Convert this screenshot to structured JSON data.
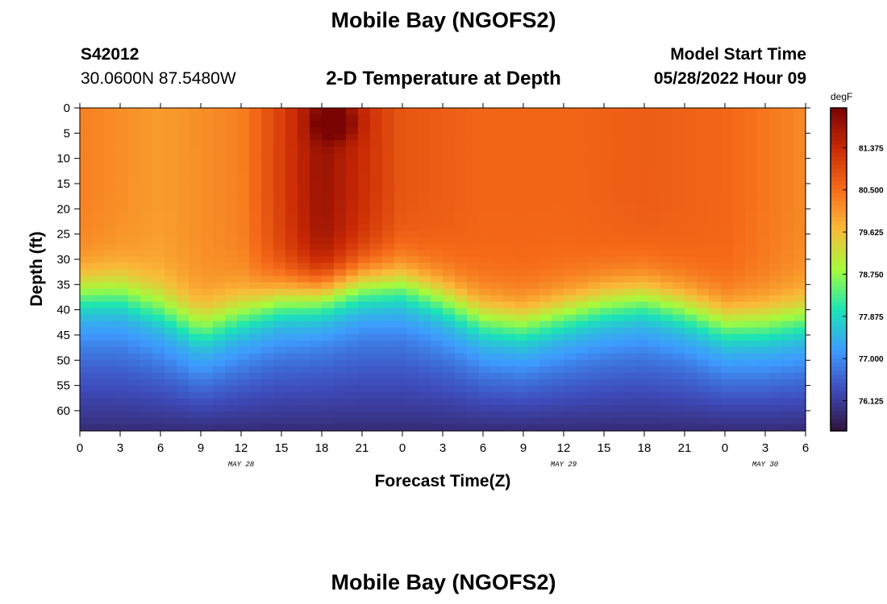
{
  "header": {
    "title": "Mobile Bay (NGOFS2)",
    "station_id": "S42012",
    "station_coords": "30.0600N  87.5480W",
    "subtitle": "2-D Temperature at Depth",
    "model_start_label": "Model Start Time",
    "model_start_value": "05/28/2022 Hour 09"
  },
  "footer": {
    "next_title": "Mobile Bay (NGOFS2)"
  },
  "colors": {
    "palette": [
      "#30123b",
      "#3e4ab9",
      "#3e9bfe",
      "#1ae4b6",
      "#a4fc3c",
      "#faba39",
      "#f66b19",
      "#ca2a04",
      "#7a0403"
    ]
  },
  "chart_data": {
    "type": "heatmap",
    "xlabel": "Forecast Time(Z)",
    "ylabel": "Depth (ft)",
    "x_ticks": [
      "0",
      "3",
      "6",
      "9",
      "12",
      "15",
      "18",
      "21",
      "0",
      "3",
      "6",
      "9",
      "12",
      "15",
      "18",
      "21",
      "0",
      "3",
      "6"
    ],
    "xlim": [
      0,
      54
    ],
    "date_labels": [
      {
        "label": "MAY 28",
        "x": 12
      },
      {
        "label": "MAY 29",
        "x": 36
      },
      {
        "label": "MAY 30",
        "x": 51
      }
    ],
    "y_ticks": [
      "0",
      "5",
      "10",
      "15",
      "20",
      "25",
      "30",
      "35",
      "40",
      "45",
      "50",
      "55",
      "60"
    ],
    "ylim": [
      0,
      64
    ],
    "colorbar": {
      "unit": "degF",
      "range": [
        75.5,
        82.2
      ],
      "ticks": [
        "81.375",
        "80.500",
        "79.625",
        "78.750",
        "77.875",
        "77.000",
        "76.125"
      ]
    },
    "thermocline_depth_ft": [
      {
        "x": 0,
        "y": 37
      },
      {
        "x": 3,
        "y": 37
      },
      {
        "x": 6,
        "y": 40
      },
      {
        "x": 9,
        "y": 44
      },
      {
        "x": 12,
        "y": 41
      },
      {
        "x": 15,
        "y": 38
      },
      {
        "x": 18,
        "y": 37
      },
      {
        "x": 21,
        "y": 35
      },
      {
        "x": 24,
        "y": 35
      },
      {
        "x": 27,
        "y": 38
      },
      {
        "x": 30,
        "y": 42
      },
      {
        "x": 33,
        "y": 43
      },
      {
        "x": 36,
        "y": 41
      },
      {
        "x": 39,
        "y": 39
      },
      {
        "x": 42,
        "y": 38
      },
      {
        "x": 45,
        "y": 40
      },
      {
        "x": 48,
        "y": 43
      },
      {
        "x": 51,
        "y": 43
      },
      {
        "x": 54,
        "y": 42
      }
    ],
    "surface_temperature_degF": [
      {
        "x": 0,
        "y": 80.3
      },
      {
        "x": 6,
        "y": 80.0
      },
      {
        "x": 12,
        "y": 80.3
      },
      {
        "x": 18,
        "y": 81.9
      },
      {
        "x": 24,
        "y": 80.8
      },
      {
        "x": 30,
        "y": 80.6
      },
      {
        "x": 36,
        "y": 80.6
      },
      {
        "x": 42,
        "y": 80.7
      },
      {
        "x": 48,
        "y": 80.6
      },
      {
        "x": 54,
        "y": 80.2
      }
    ],
    "bottom_temperature_degF": 75.9
  }
}
